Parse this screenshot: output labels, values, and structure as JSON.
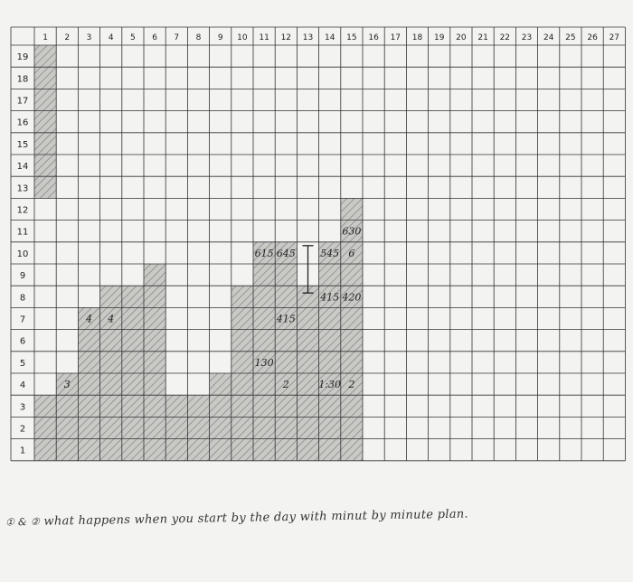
{
  "chart_data": {
    "type": "bar",
    "style": "hand-shaded graph-paper column chart",
    "x": [
      "1",
      "2",
      "3",
      "4",
      "5",
      "6",
      "7",
      "8",
      "9",
      "10",
      "11",
      "12",
      "13",
      "14",
      "15",
      "16",
      "17",
      "18",
      "19",
      "20",
      "21",
      "22",
      "23",
      "24",
      "25",
      "26",
      "27"
    ],
    "y_ticks": [
      "1",
      "2",
      "3",
      "4",
      "5",
      "6",
      "7",
      "8",
      "9",
      "10",
      "11",
      "12",
      "13",
      "14",
      "15",
      "16",
      "17",
      "18",
      "19"
    ],
    "ylim": [
      0,
      19
    ],
    "values": [
      3,
      4,
      7,
      8,
      8,
      9,
      3,
      3,
      4,
      8,
      10,
      10,
      8,
      10,
      12,
      0,
      0,
      0,
      0,
      0,
      0,
      0,
      0,
      0,
      0,
      0,
      0
    ],
    "floating_bars": [
      {
        "x": "1",
        "from": 12,
        "to": 19
      }
    ],
    "grid": true,
    "shade_color": "#9a9a9a",
    "annotations": [
      {
        "text": "3",
        "x": 2,
        "y": 4
      },
      {
        "text": "4",
        "x": 3,
        "y": 7
      },
      {
        "text": "4",
        "x": 4,
        "y": 7
      },
      {
        "text": "615",
        "x": 11,
        "y": 10
      },
      {
        "text": "645",
        "x": 12,
        "y": 10
      },
      {
        "text": "545",
        "x": 14,
        "y": 10
      },
      {
        "text": "6",
        "x": 15,
        "y": 10
      },
      {
        "text": "630",
        "x": 15,
        "y": 11
      },
      {
        "text": "415",
        "x": 14,
        "y": 8
      },
      {
        "text": "420",
        "x": 15,
        "y": 8
      },
      {
        "text": "415",
        "x": 12,
        "y": 7
      },
      {
        "text": "130",
        "x": 11,
        "y": 5
      },
      {
        "text": "2",
        "x": 12,
        "y": 4
      },
      {
        "text": "1:30",
        "x": 14,
        "y": 4
      },
      {
        "text": "2",
        "x": 15,
        "y": 4
      }
    ]
  },
  "footnote": {
    "markers": "① & ②",
    "text": "what happens when you start by the day with minut by minute plan."
  }
}
